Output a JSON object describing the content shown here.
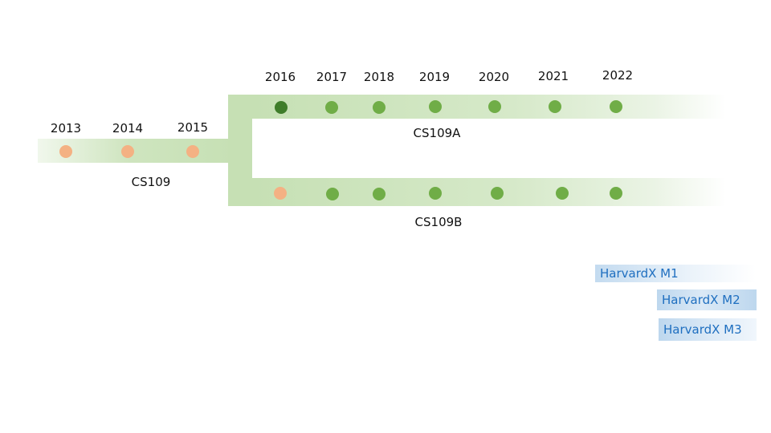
{
  "tracks": {
    "cs109": {
      "label": "CS109",
      "years": [
        "2013",
        "2014",
        "2015"
      ],
      "dot_colors": [
        "#f4b183",
        "#f4b183",
        "#f4b183"
      ]
    },
    "cs109a": {
      "label": "CS109A",
      "years": [
        "2016",
        "2017",
        "2018",
        "2019",
        "2020",
        "2021",
        "2022"
      ],
      "dot_colors": [
        "#3f7d2a",
        "#70ad47",
        "#70ad47",
        "#70ad47",
        "#70ad47",
        "#70ad47",
        "#70ad47"
      ]
    },
    "cs109b": {
      "label": "CS109B",
      "dot_colors": [
        "#f4b183",
        "#70ad47",
        "#70ad47",
        "#70ad47",
        "#70ad47",
        "#70ad47",
        "#70ad47"
      ]
    }
  },
  "harvardx": {
    "m1": "HarvardX M1",
    "m2": "HarvardX M2",
    "m3": "HarvardX M3"
  },
  "colors": {
    "band": "#c6e0b4",
    "peach_dot": "#f4b183",
    "green_dot": "#70ad47",
    "dark_green_dot": "#3f7d2a",
    "harvardx_text": "#1f6fc0",
    "harvardx_fill": "#bdd7ee"
  }
}
